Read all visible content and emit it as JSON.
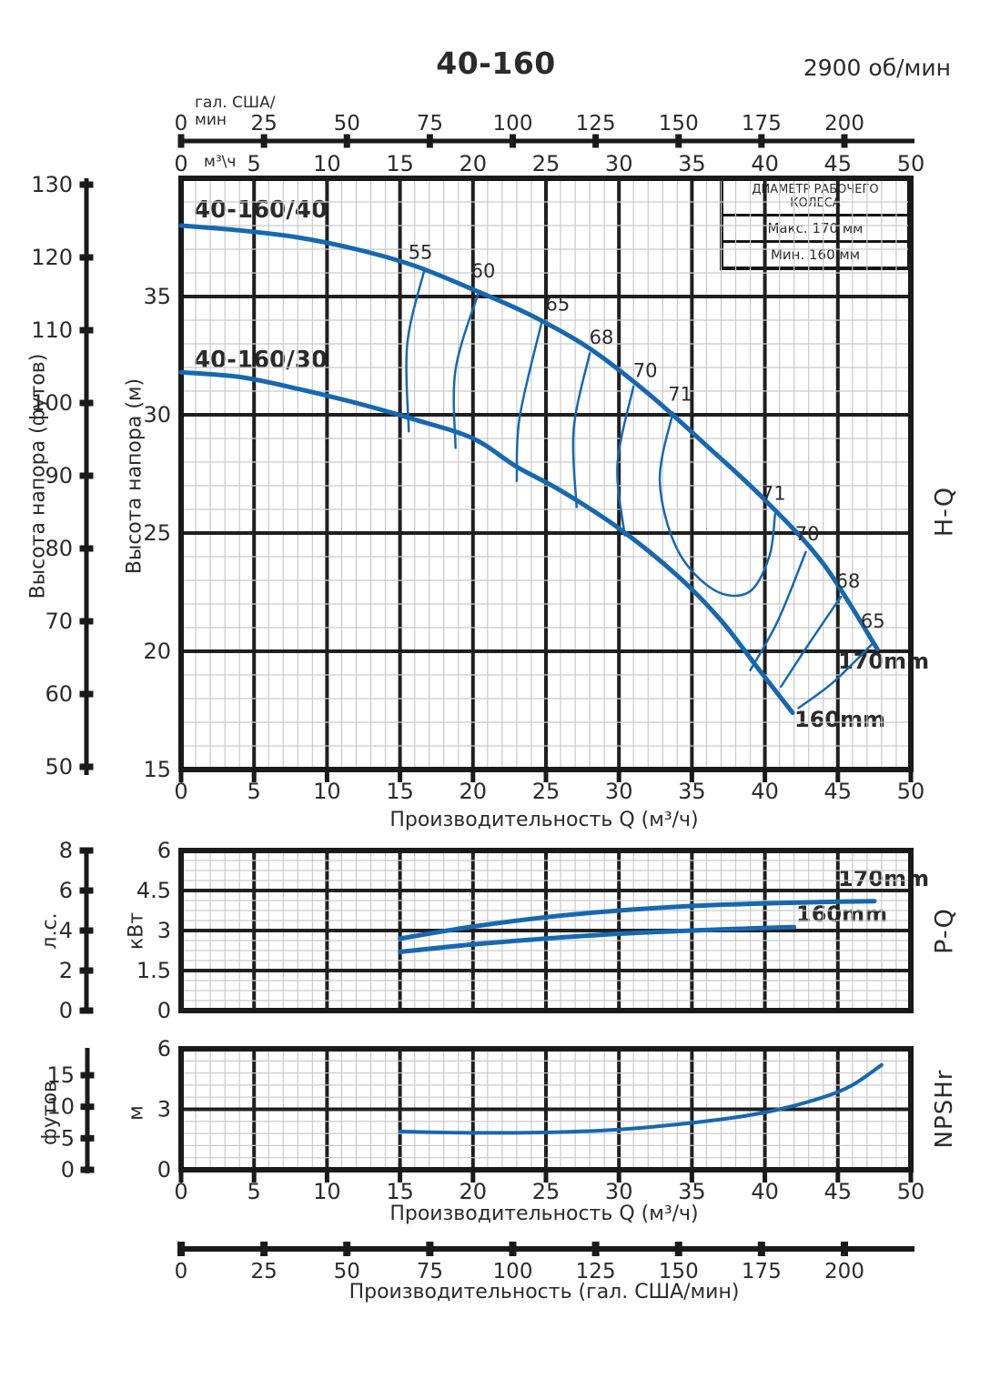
{
  "header": {
    "title": "40-160",
    "rpm": "2900 об/мин"
  },
  "legend": {
    "title": "ДИАМЕТР РАБОЧЕГО КОЛЕСА",
    "max": "Макс. 170 мм",
    "min": "Мин. 160 мм"
  },
  "colors": {
    "curve": "#1668b0",
    "grid_minor": "#c9c9c9",
    "grid_major": "#1f1f1f",
    "frame": "#1a1a1a",
    "text": "#2b2b2b"
  },
  "axes": {
    "gal_top": {
      "unit_line1": "гал. США/",
      "unit_line2": "мин",
      "ticks": [
        0,
        25,
        50,
        75,
        100,
        125,
        150,
        175,
        200
      ]
    },
    "m3h_top": {
      "unit": "м³\\ч",
      "ticks": [
        0,
        5,
        10,
        15,
        20,
        25,
        30,
        35,
        40,
        45,
        50
      ]
    },
    "feet": {
      "label": "Высота напора (футов)",
      "ticks": [
        130,
        120,
        110,
        100,
        90,
        80,
        70,
        60,
        50
      ]
    },
    "meters": {
      "label": "Высота напора (м)",
      "ticks": [
        35,
        30,
        25,
        20,
        15
      ]
    },
    "hp": {
      "label": "л.с.",
      "ticks": [
        8,
        6,
        4,
        2,
        0
      ]
    },
    "kw": {
      "label": "кВт",
      "ticks": [
        6,
        4.5,
        3,
        1.5,
        0
      ]
    },
    "npsh_ft": {
      "label": "футов",
      "ticks": [
        15,
        10,
        5,
        0
      ]
    },
    "npsh_m": {
      "label": "м",
      "ticks": [
        6,
        3,
        0
      ]
    },
    "q_bottom_main": {
      "label": "Производительность Q (м³/ч)",
      "ticks": [
        0,
        5,
        10,
        15,
        20,
        25,
        30,
        35,
        40,
        45,
        50
      ]
    },
    "q_bottom_npshr": {
      "label": "Производительность Q (м³/ч)",
      "ticks": [
        0,
        5,
        10,
        15,
        20,
        25,
        30,
        35,
        40,
        45,
        50
      ]
    },
    "gal_bottom": {
      "label": "Производительность (гал. США/мин)",
      "ticks": [
        0,
        25,
        50,
        75,
        100,
        125,
        150,
        175,
        200
      ]
    }
  },
  "right_labels": {
    "hq": "H-Q",
    "pq": "P-Q",
    "npshr": "NPSHr"
  },
  "curve_labels": {
    "hq_170": "40-160/40",
    "hq_160": "40-160/30",
    "d170_main": "170mm",
    "d160_main": "160mm",
    "d170_pq": "170mm",
    "d160_pq": "160mm"
  },
  "chart_data": [
    {
      "id": "hq",
      "type": "line",
      "title": "H-Q",
      "xlabel": "Производительность Q (м³/ч)",
      "ylabel": "Высота напора (м)",
      "xlim": [
        0,
        50
      ],
      "ylim": [
        15,
        40
      ],
      "grid": true,
      "series": [
        {
          "name": "40-160/40 (170mm)",
          "points": [
            [
              0,
              38.0
            ],
            [
              4,
              37.8
            ],
            [
              8,
              37.5
            ],
            [
              12,
              37.0
            ],
            [
              16,
              36.3
            ],
            [
              20,
              35.3
            ],
            [
              24,
              34.2
            ],
            [
              28,
              32.8
            ],
            [
              32,
              30.9
            ],
            [
              36,
              28.7
            ],
            [
              40,
              26.4
            ],
            [
              44,
              23.7
            ],
            [
              47.7,
              20.1
            ]
          ]
        },
        {
          "name": "40-160/30 (160mm)",
          "points": [
            [
              0,
              31.8
            ],
            [
              4,
              31.6
            ],
            [
              8,
              31.1
            ],
            [
              12,
              30.5
            ],
            [
              16,
              29.8
            ],
            [
              20,
              29.0
            ],
            [
              23,
              27.8
            ],
            [
              26,
              26.8
            ],
            [
              30,
              25.2
            ],
            [
              34,
              23.2
            ],
            [
              37,
              21.3
            ],
            [
              39.5,
              19.3
            ],
            [
              41.9,
              17.4
            ]
          ]
        }
      ],
      "efficiency_contours": [
        {
          "label": "55",
          "points": [
            [
              16.7,
              36.2
            ],
            [
              15.5,
              33.0
            ],
            [
              15.6,
              29.3
            ]
          ]
        },
        {
          "label": "60",
          "points": [
            [
              20.4,
              35.2
            ],
            [
              18.8,
              31.9
            ],
            [
              18.8,
              28.6
            ]
          ]
        },
        {
          "label": "65",
          "points": [
            [
              24.7,
              33.9
            ],
            [
              23.2,
              29.9
            ],
            [
              23.0,
              27.2
            ]
          ]
        },
        {
          "label": "68",
          "points": [
            [
              28.0,
              32.6
            ],
            [
              26.9,
              29.4
            ],
            [
              27.1,
              26.1
            ]
          ]
        },
        {
          "label": "70",
          "points": [
            [
              31.0,
              31.2
            ],
            [
              29.9,
              27.9
            ],
            [
              30.4,
              24.9
            ]
          ]
        },
        {
          "label": "71",
          "points": [
            [
              33.7,
              30.1
            ],
            [
              32.8,
              27.2
            ],
            [
              34.0,
              24.3
            ],
            [
              36.5,
              22.6
            ],
            [
              38.9,
              22.5
            ],
            [
              40.3,
              24.0
            ],
            [
              40.7,
              25.8
            ]
          ]
        },
        {
          "label": "70r",
          "points": [
            [
              42.8,
              24.2
            ],
            [
              40.9,
              21.3
            ],
            [
              39.0,
              19.2
            ]
          ]
        },
        {
          "label": "68r",
          "points": [
            [
              45.2,
              22.3
            ],
            [
              43.0,
              20.3
            ],
            [
              41.1,
              18.5
            ]
          ]
        },
        {
          "label": "65r",
          "points": [
            [
              47.5,
              20.4
            ],
            [
              44.7,
              18.7
            ],
            [
              42.3,
              17.6
            ]
          ]
        }
      ],
      "efficiency_labels": [
        {
          "text": "55",
          "q": 16.4,
          "h": 36.6
        },
        {
          "text": "60",
          "q": 20.7,
          "h": 35.8
        },
        {
          "text": "65",
          "q": 25.8,
          "h": 34.4
        },
        {
          "text": "68",
          "q": 28.8,
          "h": 33.0
        },
        {
          "text": "70",
          "q": 31.8,
          "h": 31.6
        },
        {
          "text": "71",
          "q": 34.2,
          "h": 30.6
        },
        {
          "text": "71",
          "q": 40.6,
          "h": 26.4
        },
        {
          "text": "70",
          "q": 42.9,
          "h": 24.7
        },
        {
          "text": "68",
          "q": 45.7,
          "h": 22.7
        },
        {
          "text": "65",
          "q": 47.4,
          "h": 21.0
        }
      ]
    },
    {
      "id": "pq",
      "type": "line",
      "title": "P-Q",
      "xlabel": "Производительность Q (м³/ч)",
      "ylabel": "кВт",
      "xlim": [
        0,
        50
      ],
      "ylim": [
        0,
        6
      ],
      "grid": true,
      "series": [
        {
          "name": "170mm",
          "points": [
            [
              15,
              2.7
            ],
            [
              20,
              3.15
            ],
            [
              25,
              3.5
            ],
            [
              30,
              3.75
            ],
            [
              35,
              3.92
            ],
            [
              40,
              4.02
            ],
            [
              44,
              4.07
            ],
            [
              47.5,
              4.1
            ]
          ]
        },
        {
          "name": "160mm",
          "points": [
            [
              15,
              2.2
            ],
            [
              20,
              2.48
            ],
            [
              25,
              2.7
            ],
            [
              30,
              2.88
            ],
            [
              35,
              3.0
            ],
            [
              40,
              3.1
            ],
            [
              42,
              3.13
            ]
          ]
        }
      ]
    },
    {
      "id": "npshr",
      "type": "line",
      "title": "NPSHr",
      "xlabel": "Производительность Q (м³/ч)",
      "ylabel": "м",
      "xlim": [
        0,
        50
      ],
      "ylim": [
        0,
        6
      ],
      "grid": true,
      "series": [
        {
          "name": "NPSHr",
          "points": [
            [
              15,
              1.9
            ],
            [
              18,
              1.85
            ],
            [
              22,
              1.83
            ],
            [
              26,
              1.87
            ],
            [
              30,
              2.0
            ],
            [
              34,
              2.25
            ],
            [
              38,
              2.6
            ],
            [
              41,
              3.0
            ],
            [
              44,
              3.6
            ],
            [
              46,
              4.2
            ],
            [
              48,
              5.2
            ]
          ]
        }
      ]
    }
  ]
}
